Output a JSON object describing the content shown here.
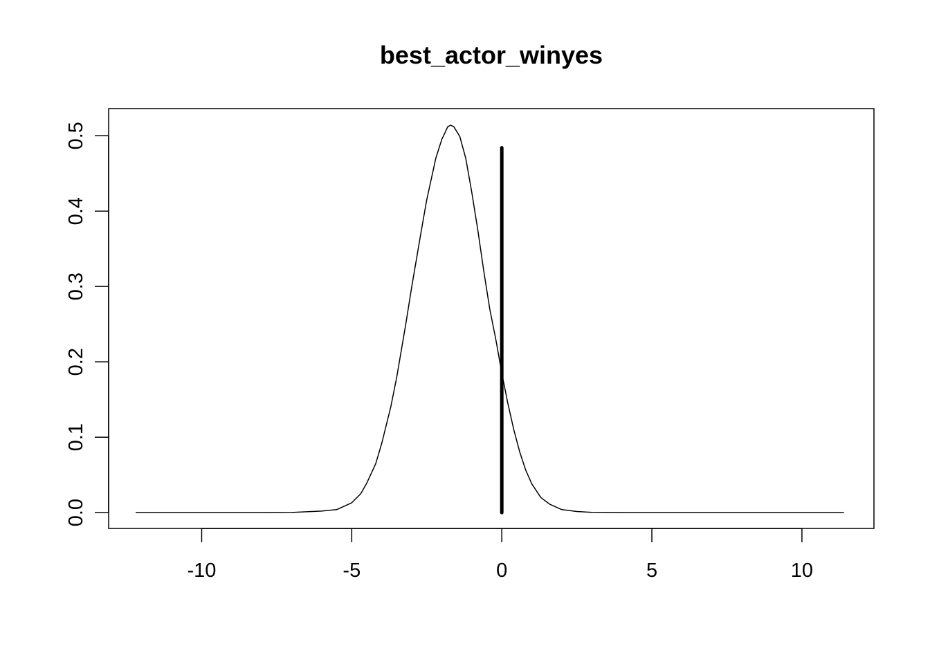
{
  "chart_data": {
    "type": "line",
    "title": "best_actor_winyes",
    "xlabel": "",
    "ylabel": "",
    "xlim": [
      -13.1,
      12.4
    ],
    "ylim": [
      -0.021,
      0.536
    ],
    "x_ticks": [
      -10,
      -5,
      0,
      5,
      10
    ],
    "x_tick_labels": [
      "-10",
      "-5",
      "0",
      "5",
      "10"
    ],
    "y_ticks": [
      0.0,
      0.1,
      0.2,
      0.3,
      0.4,
      0.5
    ],
    "y_tick_labels": [
      "0.0",
      "0.1",
      "0.2",
      "0.3",
      "0.4",
      "0.5"
    ],
    "grid": false,
    "legend": "none",
    "series": [
      {
        "kind": "density-curve",
        "color": "#000000",
        "x": [
          -12.2,
          -8.0,
          -7.0,
          -6.0,
          -5.5,
          -5.0,
          -4.7,
          -4.5,
          -4.2,
          -4.0,
          -3.7,
          -3.5,
          -3.2,
          -3.0,
          -2.7,
          -2.5,
          -2.2,
          -2.0,
          -1.8,
          -1.7,
          -1.6,
          -1.4,
          -1.2,
          -1.0,
          -0.8,
          -0.6,
          -0.4,
          -0.2,
          0.0,
          0.2,
          0.4,
          0.6,
          0.8,
          1.0,
          1.3,
          1.6,
          2.0,
          2.5,
          3.0,
          4.0,
          6.0,
          8.0,
          11.4
        ],
        "y": [
          0.0,
          0.0,
          0.0002,
          0.002,
          0.004,
          0.013,
          0.025,
          0.039,
          0.065,
          0.092,
          0.14,
          0.18,
          0.25,
          0.3,
          0.37,
          0.415,
          0.47,
          0.495,
          0.512,
          0.514,
          0.512,
          0.499,
          0.47,
          0.425,
          0.375,
          0.32,
          0.27,
          0.23,
          0.185,
          0.145,
          0.11,
          0.08,
          0.056,
          0.038,
          0.02,
          0.011,
          0.004,
          0.0015,
          0.0003,
          0.0,
          0.0,
          0.0,
          0.0
        ]
      },
      {
        "kind": "vertical-segment",
        "color": "#000000",
        "x": [
          0,
          0
        ],
        "y": [
          0.0,
          0.484
        ]
      }
    ]
  }
}
